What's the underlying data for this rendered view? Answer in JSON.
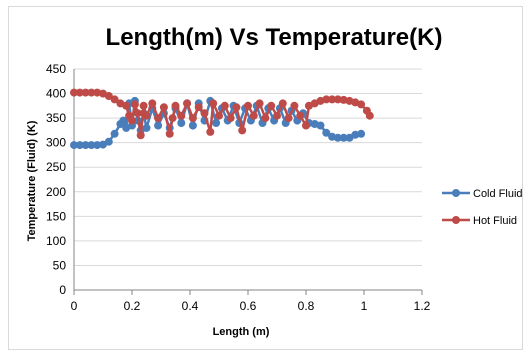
{
  "chart_data": {
    "type": "line",
    "title": "Length(m) Vs Temperature(K)",
    "xlabel": "Length (m)",
    "ylabel": "Temperature (Fluid) (K)",
    "xlim": [
      0,
      1.2
    ],
    "ylim": [
      0,
      450
    ],
    "x_ticks": [
      "0",
      "0.2",
      "0.4",
      "0.6",
      "0.8",
      "1",
      "1.2"
    ],
    "y_ticks": [
      "0",
      "50",
      "100",
      "150",
      "200",
      "250",
      "300",
      "350",
      "400",
      "450"
    ],
    "grid": "horizontal",
    "legend_position": "right",
    "series": [
      {
        "name": "Cold Fluid",
        "color": "#4a7ebb",
        "points": [
          [
            0.0,
            295
          ],
          [
            0.02,
            295
          ],
          [
            0.04,
            295
          ],
          [
            0.06,
            295
          ],
          [
            0.08,
            295
          ],
          [
            0.1,
            296
          ],
          [
            0.12,
            302
          ],
          [
            0.14,
            318
          ],
          [
            0.16,
            338
          ],
          [
            0.17,
            345
          ],
          [
            0.18,
            330
          ],
          [
            0.19,
            380
          ],
          [
            0.2,
            335
          ],
          [
            0.21,
            385
          ],
          [
            0.22,
            345
          ],
          [
            0.23,
            325
          ],
          [
            0.24,
            360
          ],
          [
            0.25,
            330
          ],
          [
            0.27,
            370
          ],
          [
            0.29,
            335
          ],
          [
            0.31,
            360
          ],
          [
            0.33,
            330
          ],
          [
            0.35,
            370
          ],
          [
            0.37,
            340
          ],
          [
            0.39,
            380
          ],
          [
            0.41,
            335
          ],
          [
            0.43,
            380
          ],
          [
            0.45,
            345
          ],
          [
            0.47,
            385
          ],
          [
            0.49,
            340
          ],
          [
            0.51,
            370
          ],
          [
            0.53,
            345
          ],
          [
            0.55,
            375
          ],
          [
            0.57,
            340
          ],
          [
            0.59,
            370
          ],
          [
            0.61,
            345
          ],
          [
            0.63,
            375
          ],
          [
            0.65,
            340
          ],
          [
            0.67,
            370
          ],
          [
            0.69,
            345
          ],
          [
            0.71,
            370
          ],
          [
            0.73,
            340
          ],
          [
            0.75,
            365
          ],
          [
            0.77,
            345
          ],
          [
            0.79,
            360
          ],
          [
            0.81,
            340
          ],
          [
            0.83,
            338
          ],
          [
            0.85,
            335
          ],
          [
            0.87,
            320
          ],
          [
            0.89,
            312
          ],
          [
            0.91,
            310
          ],
          [
            0.93,
            310
          ],
          [
            0.95,
            310
          ],
          [
            0.97,
            316
          ],
          [
            0.99,
            318
          ]
        ]
      },
      {
        "name": "Hot Fluid",
        "color": "#be4b48",
        "points": [
          [
            0.0,
            402
          ],
          [
            0.02,
            402
          ],
          [
            0.04,
            402
          ],
          [
            0.06,
            402
          ],
          [
            0.08,
            402
          ],
          [
            0.1,
            400
          ],
          [
            0.12,
            395
          ],
          [
            0.14,
            388
          ],
          [
            0.16,
            380
          ],
          [
            0.18,
            375
          ],
          [
            0.19,
            355
          ],
          [
            0.2,
            345
          ],
          [
            0.21,
            378
          ],
          [
            0.22,
            360
          ],
          [
            0.23,
            315
          ],
          [
            0.24,
            375
          ],
          [
            0.25,
            355
          ],
          [
            0.27,
            380
          ],
          [
            0.29,
            350
          ],
          [
            0.31,
            372
          ],
          [
            0.33,
            318
          ],
          [
            0.34,
            350
          ],
          [
            0.35,
            375
          ],
          [
            0.37,
            355
          ],
          [
            0.39,
            380
          ],
          [
            0.41,
            350
          ],
          [
            0.43,
            372
          ],
          [
            0.45,
            360
          ],
          [
            0.47,
            322
          ],
          [
            0.48,
            380
          ],
          [
            0.5,
            355
          ],
          [
            0.52,
            375
          ],
          [
            0.54,
            350
          ],
          [
            0.56,
            372
          ],
          [
            0.58,
            325
          ],
          [
            0.6,
            375
          ],
          [
            0.62,
            355
          ],
          [
            0.64,
            380
          ],
          [
            0.66,
            350
          ],
          [
            0.68,
            375
          ],
          [
            0.7,
            355
          ],
          [
            0.72,
            380
          ],
          [
            0.74,
            350
          ],
          [
            0.76,
            375
          ],
          [
            0.78,
            355
          ],
          [
            0.8,
            335
          ],
          [
            0.81,
            375
          ],
          [
            0.83,
            380
          ],
          [
            0.85,
            385
          ],
          [
            0.87,
            388
          ],
          [
            0.89,
            388
          ],
          [
            0.91,
            388
          ],
          [
            0.93,
            387
          ],
          [
            0.95,
            385
          ],
          [
            0.97,
            382
          ],
          [
            0.99,
            378
          ],
          [
            1.01,
            365
          ],
          [
            1.02,
            355
          ]
        ]
      }
    ]
  }
}
